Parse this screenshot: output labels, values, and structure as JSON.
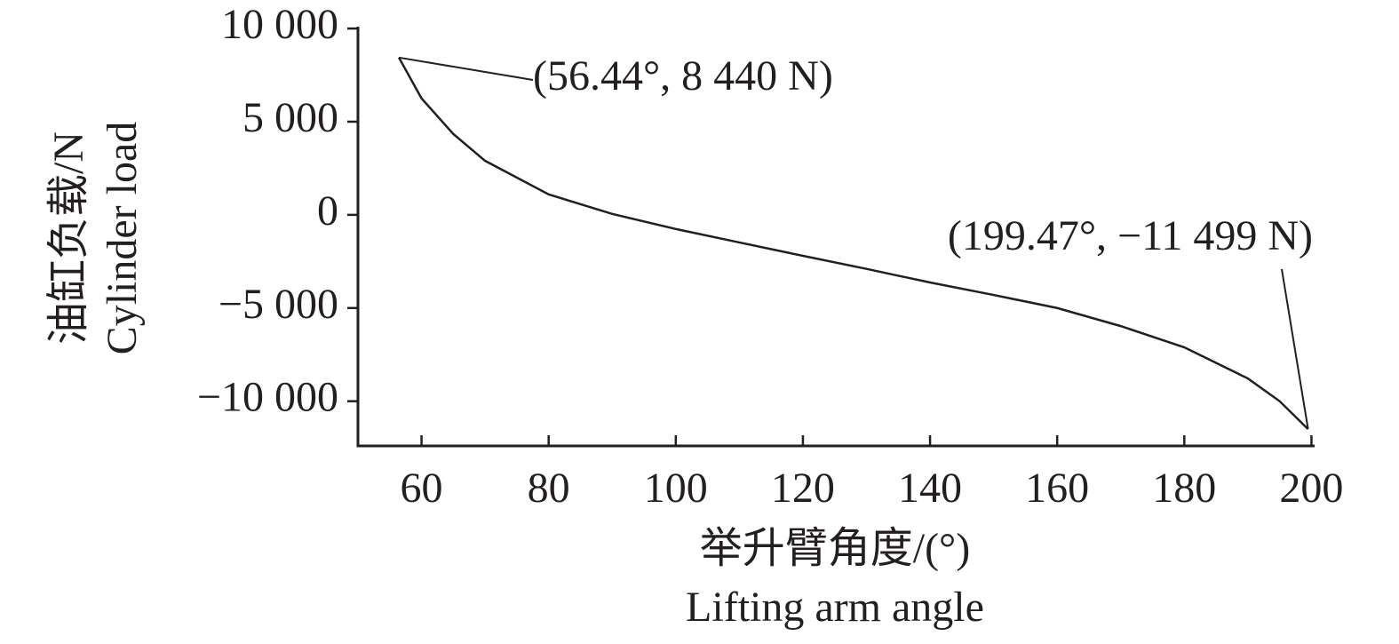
{
  "chart_data": {
    "type": "line",
    "xlabel": [
      "举升臂角度/(°)",
      "Lifting arm angle"
    ],
    "ylabel": [
      "油缸负载/N",
      "Cylinder load"
    ],
    "x": [
      56.44,
      60,
      65,
      70,
      80,
      90,
      100,
      110,
      120,
      130,
      140,
      150,
      160,
      170,
      180,
      190,
      195,
      199.47
    ],
    "values": [
      8440,
      6250,
      4340,
      2900,
      1100,
      50,
      -760,
      -1480,
      -2200,
      -2900,
      -3630,
      -4300,
      -5000,
      -5970,
      -7110,
      -8780,
      -10000,
      -11499
    ],
    "color": "#231f20",
    "xlim": [
      50,
      200.5
    ],
    "ylim": [
      -12400,
      10100
    ],
    "xticks": [
      60,
      80,
      100,
      120,
      140,
      160,
      180,
      200
    ],
    "yticks": [
      {
        "value": 10000,
        "label": "10 000"
      },
      {
        "value": 5000,
        "label": "5 000"
      },
      0,
      {
        "value": -5000,
        "label": "−5 000"
      },
      {
        "value": -10000,
        "label": "−10 000"
      }
    ],
    "annotations": [
      {
        "text": "(56.44°, 8 440 N)",
        "x": 56.44,
        "y": 8440
      },
      {
        "text": "(199.47°, −11 499 N)",
        "x": 199.47,
        "y": -11499
      }
    ]
  }
}
